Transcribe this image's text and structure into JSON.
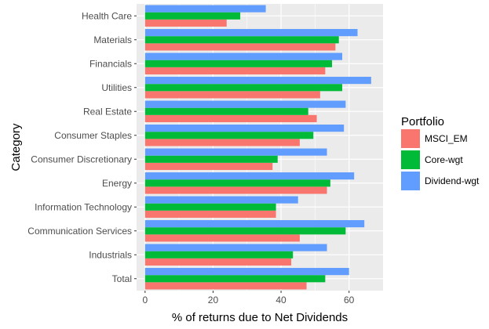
{
  "chart_data": {
    "type": "bar",
    "orientation": "horizontal",
    "categories": [
      "Health Care",
      "Materials",
      "Financials",
      "Utilities",
      "Real Estate",
      "Consumer Staples",
      "Consumer Discretionary",
      "Energy",
      "Information Technology",
      "Communication Services",
      "Industrials",
      "Total"
    ],
    "series": [
      {
        "name": "MSCI_EM",
        "color": "#F8766D",
        "values": [
          24,
          56,
          53,
          51.5,
          50.5,
          45.5,
          37.5,
          53.5,
          38.5,
          45.5,
          43,
          47.5
        ]
      },
      {
        "name": "Core-wgt",
        "color": "#00BA38",
        "values": [
          28,
          57,
          55,
          58,
          48,
          49.5,
          39,
          54.5,
          38.5,
          59,
          43.5,
          53
        ]
      },
      {
        "name": "Dividend-wgt",
        "color": "#619CFF",
        "values": [
          35.5,
          62.5,
          58,
          66.5,
          59,
          58.5,
          53.5,
          61.5,
          45,
          64.5,
          53.5,
          60
        ]
      }
    ],
    "xlabel": "% of returns due to Net Dividends",
    "ylabel": "Category",
    "xlim": [
      -2.5,
      70
    ],
    "xticks": [
      0,
      20,
      40,
      60
    ],
    "grid": true,
    "legend": {
      "title": "Portfolio",
      "placement": "right"
    }
  }
}
